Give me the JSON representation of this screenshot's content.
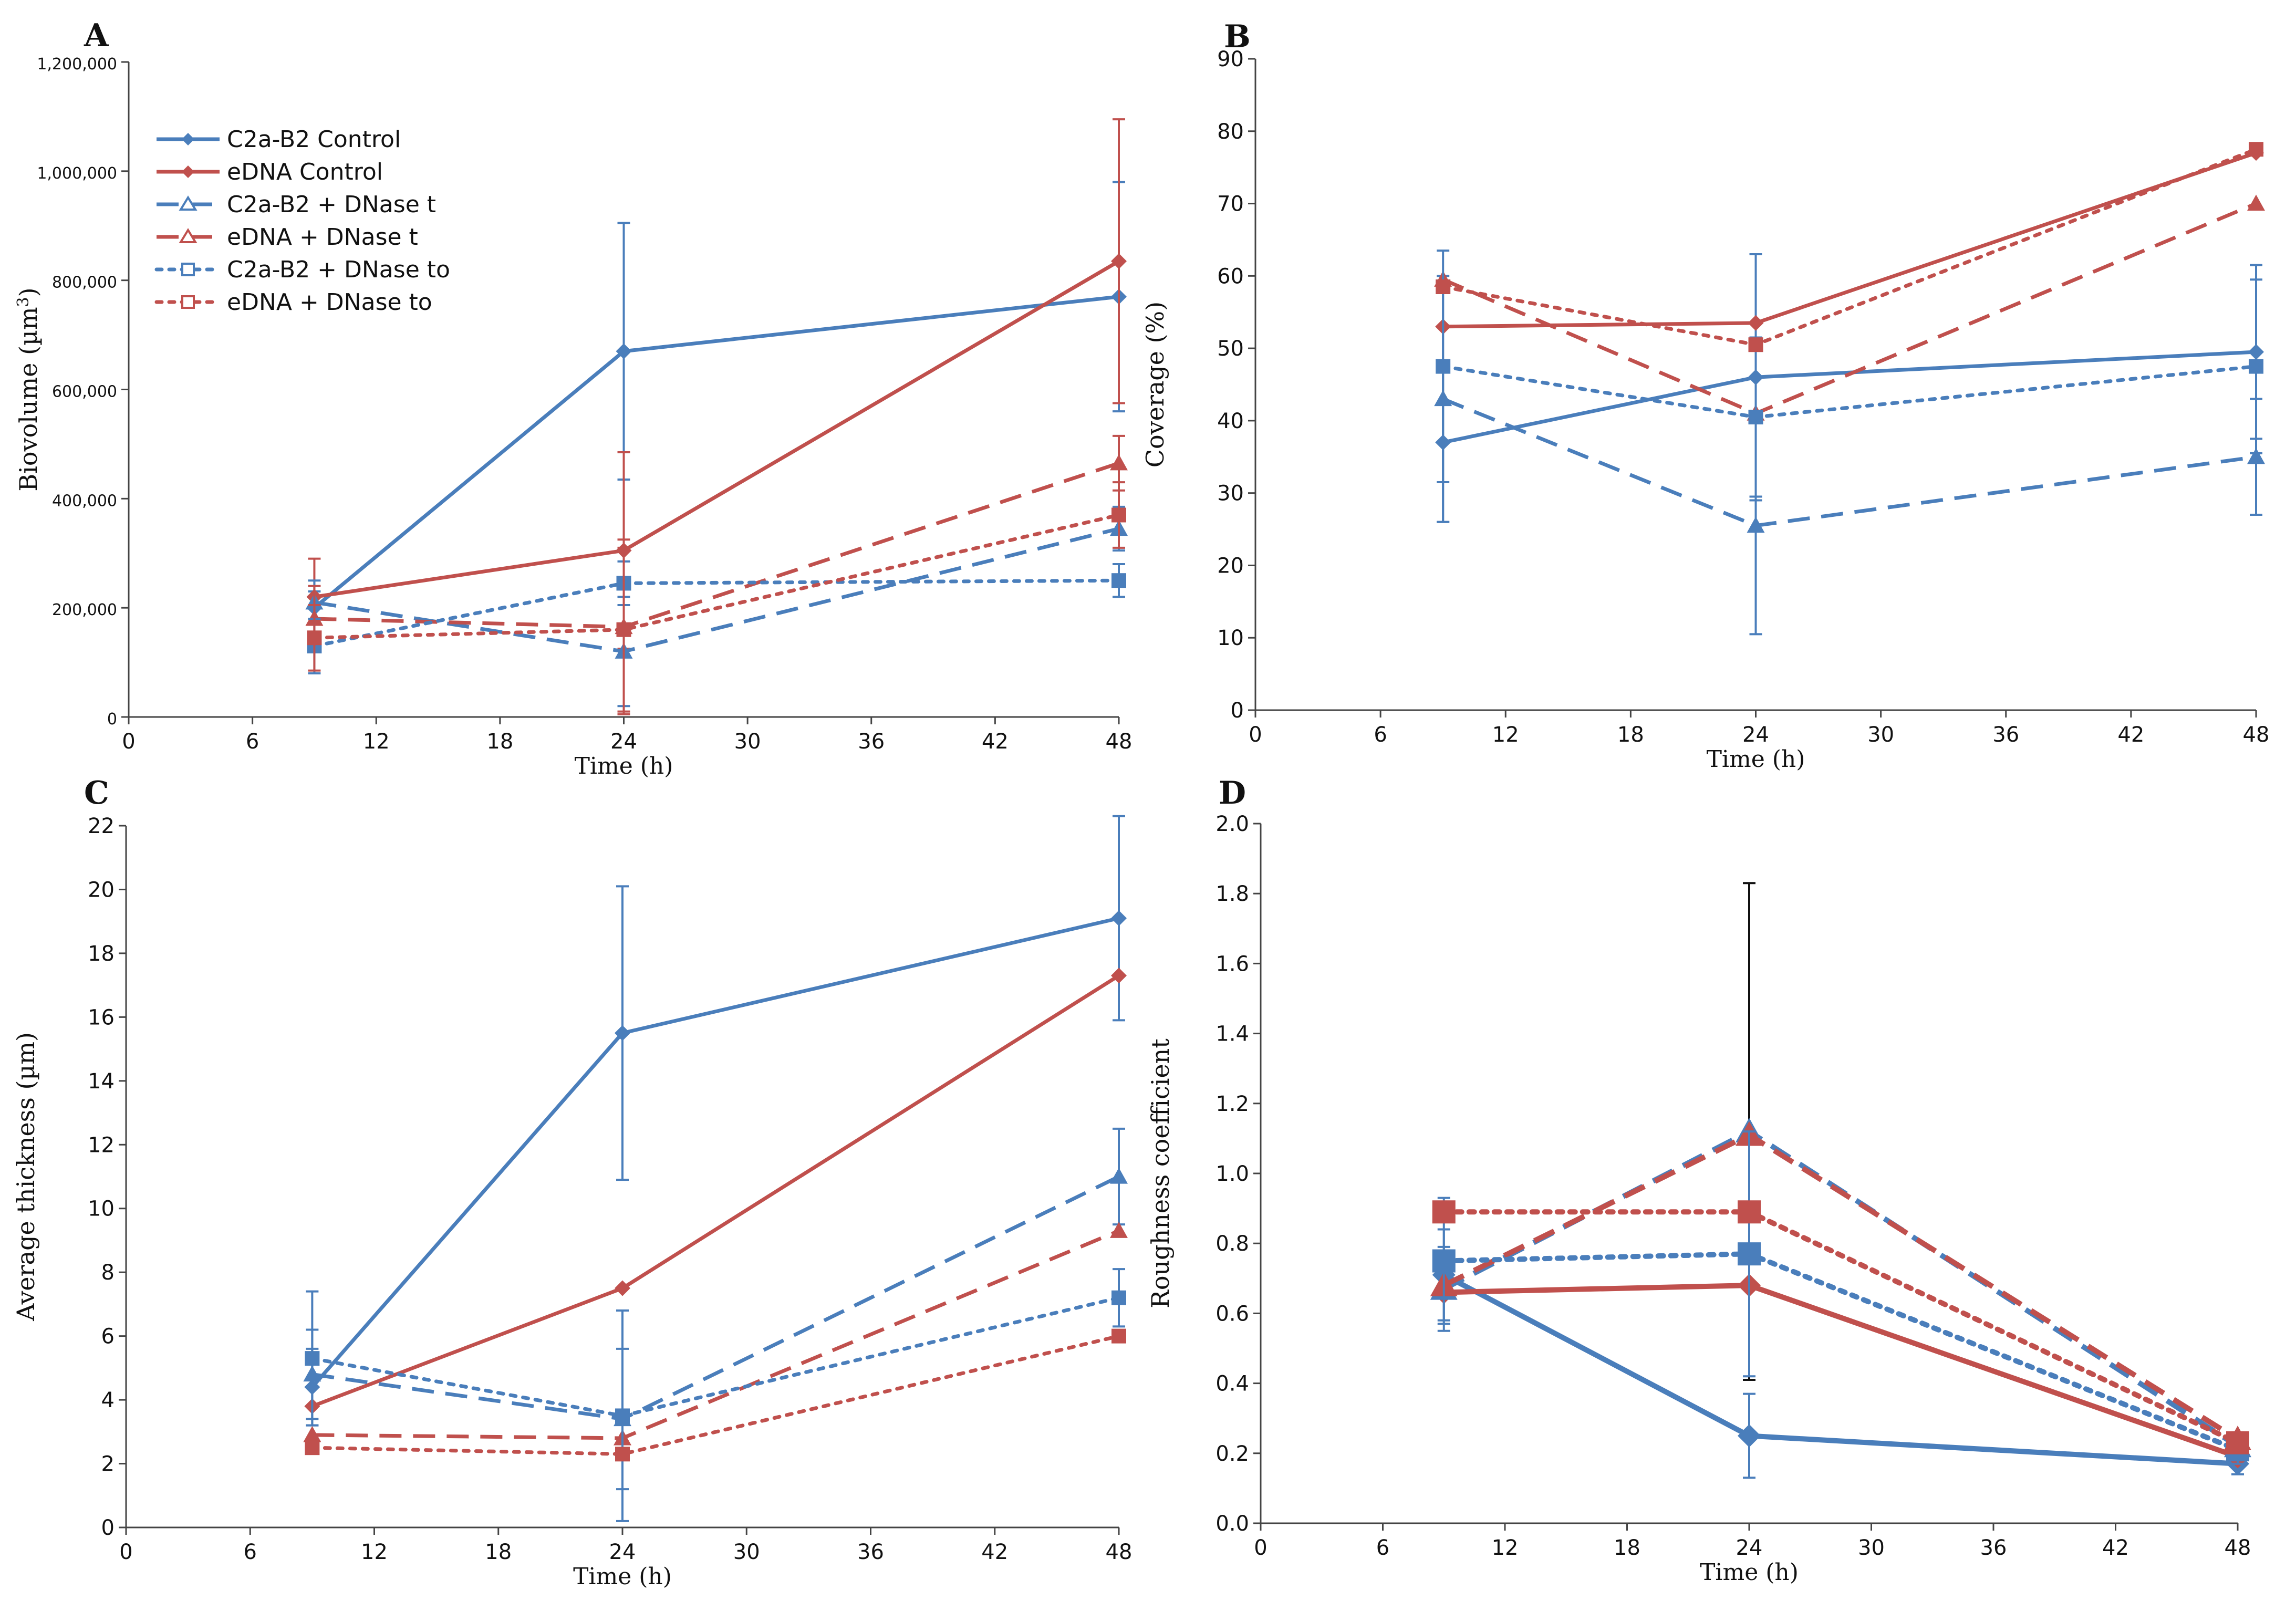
{
  "colors": {
    "blue": "#4a7ebb",
    "red": "#c0504d",
    "axis": "#444444",
    "text": "#111111"
  },
  "legend": [
    {
      "label": "C2a-B2 Control",
      "color": "#4a7ebb",
      "style": "solid",
      "marker": "diamond"
    },
    {
      "label": "eDNA Control",
      "color": "#c0504d",
      "style": "solid",
      "marker": "diamond"
    },
    {
      "label": "C2a-B2 + DNase t",
      "color": "#4a7ebb",
      "style": "dashed",
      "marker": "triangle"
    },
    {
      "label": "eDNA + DNase t",
      "color": "#c0504d",
      "style": "dashed",
      "marker": "triangle"
    },
    {
      "label": "C2a-B2 + DNase to",
      "color": "#4a7ebb",
      "style": "dotted",
      "marker": "square"
    },
    {
      "label": "eDNA + DNase to",
      "color": "#c0504d",
      "style": "dotted",
      "marker": "square"
    }
  ],
  "chart_data": [
    {
      "panel": "A",
      "type": "line",
      "xlabel": "Time (h)",
      "ylabel": "Biovolume (µm³)",
      "ylabel_main": "Biovolume (µm",
      "ylabel_sup": "3",
      "ylabel_close": ")",
      "x": [
        9,
        24,
        48
      ],
      "xlim": [
        0,
        48
      ],
      "ylim": [
        0,
        1200000
      ],
      "xticks": [
        "0",
        "6",
        "12",
        "18",
        "24",
        "30",
        "36",
        "42",
        "48"
      ],
      "yticks": [
        "0",
        "200,000",
        "400,000",
        "600,000",
        "800,000",
        "1,000,000",
        "1,200,000"
      ],
      "series": [
        {
          "name": "C2a-B2 Control",
          "values": [
            200000,
            670000,
            770000
          ],
          "err": [
            30000,
            235000,
            210000
          ],
          "color": "#4a7ebb",
          "style": "solid",
          "marker": "diamond"
        },
        {
          "name": "eDNA Control",
          "values": [
            220000,
            305000,
            835000
          ],
          "err": [
            70000,
            180000,
            260000
          ],
          "color": "#c0504d",
          "style": "solid",
          "marker": "diamond"
        },
        {
          "name": "C2a-B2 + DNase t",
          "values": [
            210000,
            120000,
            345000
          ],
          "err": [
            40000,
            100000,
            40000
          ],
          "color": "#4a7ebb",
          "style": "dashed",
          "marker": "triangle"
        },
        {
          "name": "eDNA + DNase t",
          "values": [
            180000,
            165000,
            465000
          ],
          "err": [
            60000,
            160000,
            50000
          ],
          "color": "#c0504d",
          "style": "dashed",
          "marker": "triangle"
        },
        {
          "name": "C2a-B2 + DNase to",
          "values": [
            130000,
            245000,
            250000
          ],
          "err": [
            50000,
            40000,
            30000
          ],
          "color": "#4a7ebb",
          "style": "dotted",
          "marker": "square"
        },
        {
          "name": "eDNA + DNase to",
          "values": [
            145000,
            160000,
            370000
          ],
          "err": [
            60000,
            150000,
            60000
          ],
          "color": "#c0504d",
          "style": "dotted",
          "marker": "square"
        }
      ]
    },
    {
      "panel": "B",
      "type": "line",
      "xlabel": "Time (h)",
      "ylabel": "Coverage  (%)",
      "x": [
        9,
        24,
        48
      ],
      "xlim": [
        0,
        48
      ],
      "ylim": [
        0,
        90
      ],
      "xticks": [
        "0",
        "6",
        "12",
        "18",
        "24",
        "30",
        "36",
        "42",
        "48"
      ],
      "yticks": [
        "0",
        "10",
        "20",
        "30",
        "40",
        "50",
        "60",
        "70",
        "80",
        "90"
      ],
      "series": [
        {
          "name": "C2a-B2 Control",
          "values": [
            37,
            46,
            49.5
          ],
          "err": [
            11,
            17,
            12
          ],
          "color": "#4a7ebb",
          "style": "solid",
          "marker": "diamond"
        },
        {
          "name": "eDNA Control",
          "values": [
            53,
            53.5,
            77
          ],
          "err": [
            0,
            0,
            0
          ],
          "color": "#c0504d",
          "style": "solid",
          "marker": "diamond"
        },
        {
          "name": "C2a-B2 + DNase t",
          "values": [
            43,
            25.5,
            35
          ],
          "err": [
            17,
            15,
            8
          ],
          "color": "#4a7ebb",
          "style": "dashed",
          "marker": "triangle"
        },
        {
          "name": "eDNA + DNase t",
          "values": [
            59.5,
            41,
            70
          ],
          "err": [
            0,
            0,
            0
          ],
          "color": "#c0504d",
          "style": "dashed",
          "marker": "triangle"
        },
        {
          "name": "C2a-B2 + DNase to",
          "values": [
            47.5,
            40.5,
            47.5
          ],
          "err": [
            16,
            11,
            12
          ],
          "color": "#4a7ebb",
          "style": "dotted",
          "marker": "square"
        },
        {
          "name": "eDNA + DNase to",
          "values": [
            58.5,
            50.5,
            77.5
          ],
          "err": [
            0,
            0,
            0
          ],
          "color": "#c0504d",
          "style": "dotted",
          "marker": "square"
        }
      ]
    },
    {
      "panel": "C",
      "type": "line",
      "xlabel": "Time (h)",
      "ylabel": "Average thickness (µm)",
      "x": [
        9,
        24,
        48
      ],
      "xlim": [
        0,
        48
      ],
      "ylim": [
        0,
        22
      ],
      "xticks": [
        "0",
        "6",
        "12",
        "18",
        "24",
        "30",
        "36",
        "42",
        "48"
      ],
      "yticks": [
        "0",
        "2",
        "4",
        "6",
        "8",
        "10",
        "12",
        "14",
        "16",
        "18",
        "20",
        "22"
      ],
      "series": [
        {
          "name": "C2a-B2 Control",
          "values": [
            4.4,
            15.5,
            19.1
          ],
          "err": [
            1.2,
            4.6,
            3.2
          ],
          "color": "#4a7ebb",
          "style": "solid",
          "marker": "diamond"
        },
        {
          "name": "eDNA Control",
          "values": [
            3.8,
            7.5,
            17.3
          ],
          "err": [
            0,
            0,
            0
          ],
          "color": "#c0504d",
          "style": "solid",
          "marker": "diamond"
        },
        {
          "name": "C2a-B2 + DNase t",
          "values": [
            4.8,
            3.4,
            11.0
          ],
          "err": [
            1.4,
            2.2,
            1.5
          ],
          "color": "#4a7ebb",
          "style": "dashed",
          "marker": "triangle"
        },
        {
          "name": "eDNA + DNase t",
          "values": [
            2.9,
            2.8,
            9.3
          ],
          "err": [
            0,
            0,
            0
          ],
          "color": "#c0504d",
          "style": "dashed",
          "marker": "triangle"
        },
        {
          "name": "C2a-B2 + DNase to",
          "values": [
            5.3,
            3.5,
            7.2
          ],
          "err": [
            2.1,
            3.3,
            0.9
          ],
          "color": "#4a7ebb",
          "style": "dotted",
          "marker": "square"
        },
        {
          "name": "eDNA + DNase to",
          "values": [
            2.5,
            2.3,
            6.0
          ],
          "err": [
            0,
            0,
            0
          ],
          "color": "#c0504d",
          "style": "dotted",
          "marker": "square"
        }
      ]
    },
    {
      "panel": "D",
      "type": "line",
      "xlabel": "Time (h)",
      "ylabel": "Roughness coefficient",
      "x": [
        9,
        24,
        48
      ],
      "xlim": [
        0,
        48
      ],
      "ylim": [
        0,
        2.0
      ],
      "xticks": [
        "0",
        "6",
        "12",
        "18",
        "24",
        "30",
        "36",
        "42",
        "48"
      ],
      "yticks": [
        "0.0",
        "0.2",
        "0.4",
        "0.6",
        "0.8",
        "1.0",
        "1.2",
        "1.4",
        "1.6",
        "1.8",
        "2.0"
      ],
      "series": [
        {
          "name": "C2a-B2 Control",
          "values": [
            0.71,
            0.25,
            0.17
          ],
          "err": [
            0.13,
            0.12,
            0.03
          ],
          "color": "#4a7ebb",
          "style": "solid",
          "marker": "diamond"
        },
        {
          "name": "eDNA Control",
          "values": [
            0.66,
            0.68,
            0.19
          ],
          "err": [
            0,
            0,
            0
          ],
          "color": "#c0504d",
          "style": "solid",
          "marker": "diamond"
        },
        {
          "name": "C2a-B2 + DNase t",
          "values": [
            0.67,
            1.12,
            0.22
          ],
          "err": [
            0.12,
            0.71,
            0.04
          ],
          "color": "#4a7ebb",
          "style": "dashed",
          "marker": "triangle",
          "errcolor": "#111111"
        },
        {
          "name": "eDNA + DNase t",
          "values": [
            0.68,
            1.11,
            0.24
          ],
          "err": [
            0,
            0,
            0
          ],
          "color": "#c0504d",
          "style": "dashed",
          "marker": "triangle"
        },
        {
          "name": "C2a-B2 + DNase to",
          "values": [
            0.75,
            0.77,
            0.21
          ],
          "err": [
            0.18,
            0.35,
            0.04
          ],
          "color": "#4a7ebb",
          "style": "dotted",
          "marker": "square"
        },
        {
          "name": "eDNA + DNase to",
          "values": [
            0.89,
            0.89,
            0.23
          ],
          "err": [
            0,
            0,
            0
          ],
          "color": "#c0504d",
          "style": "dotted",
          "marker": "square"
        }
      ]
    }
  ]
}
